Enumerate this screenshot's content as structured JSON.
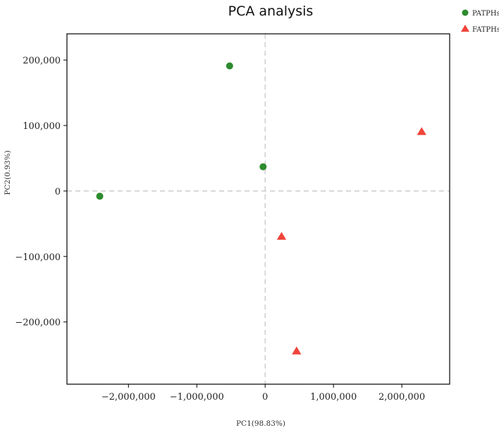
{
  "chart_data": {
    "type": "scatter",
    "title": "PCA analysis",
    "xlabel": "PC1(98.83%)",
    "ylabel": "PC2(0.93%)",
    "xlim": [
      -2900000,
      2700000
    ],
    "ylim": [
      -295000,
      240000
    ],
    "xticks": [
      -2000000,
      -1000000,
      0,
      1000000,
      2000000
    ],
    "yticks": [
      -200000,
      -100000,
      0,
      100000,
      200000
    ],
    "xtick_labels": [
      "−2,000,000",
      "−1,000,000",
      "0",
      "1,000,000",
      "2,000,000"
    ],
    "ytick_labels": [
      "−200,000",
      "−100,000",
      "0",
      "100,000",
      "200,000"
    ],
    "zero_lines": true,
    "grid": false,
    "legend_position": "top-right outside",
    "series": [
      {
        "name": "PATPHs",
        "marker": "circle",
        "color": "#2e8b2e",
        "points": [
          {
            "x": -2420000,
            "y": -8000
          },
          {
            "x": -520000,
            "y": 191000
          },
          {
            "x": -30000,
            "y": 37000
          }
        ]
      },
      {
        "name": "FATPHs",
        "marker": "triangle",
        "color": "#f0443a",
        "points": [
          {
            "x": 2290000,
            "y": 90000
          },
          {
            "x": 240000,
            "y": -70000
          },
          {
            "x": 460000,
            "y": -245000
          }
        ]
      }
    ]
  }
}
